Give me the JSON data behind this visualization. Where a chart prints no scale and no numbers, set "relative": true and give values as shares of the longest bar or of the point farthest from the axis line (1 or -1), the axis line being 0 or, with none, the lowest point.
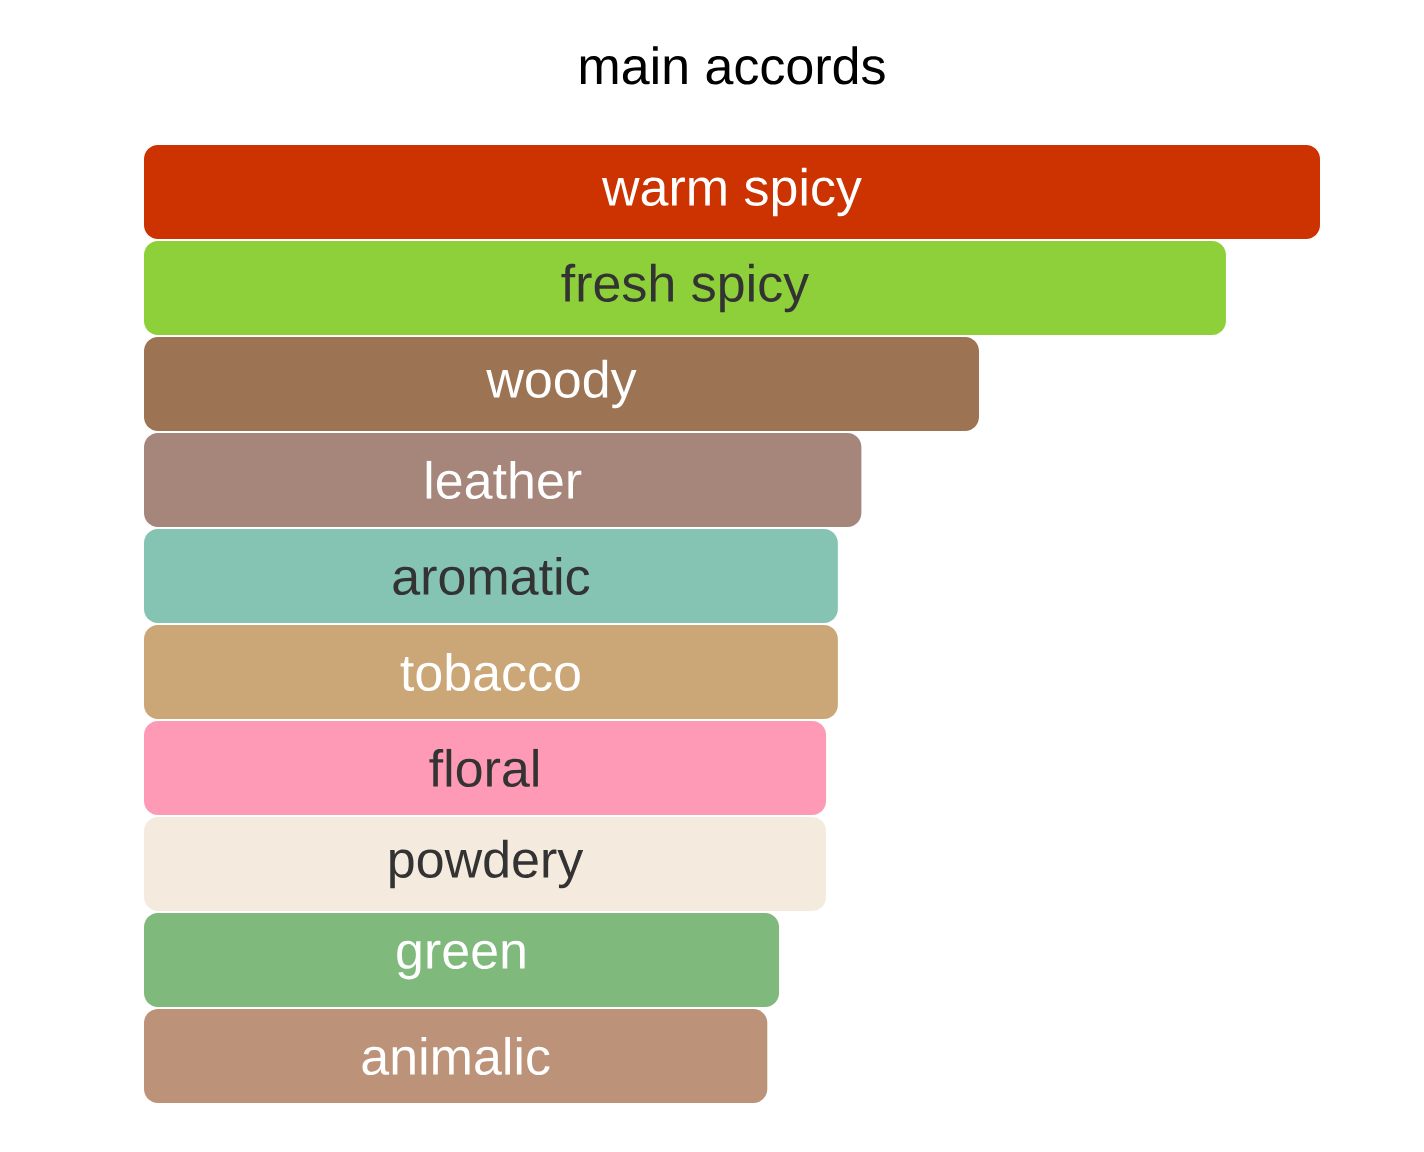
{
  "chart_data": {
    "type": "bar",
    "orientation": "horizontal",
    "relative": true,
    "title": "main accords",
    "categories": [
      "warm spicy",
      "fresh spicy",
      "woody",
      "leather",
      "aromatic",
      "tobacco",
      "floral",
      "powdery",
      "green",
      "animalic"
    ],
    "values": [
      1,
      0.92,
      0.71,
      0.61,
      0.59,
      0.59,
      0.58,
      0.58,
      0.54,
      0.53
    ],
    "colors": [
      "#cc3300",
      "#8dd03a",
      "#9c7353",
      "#a6857a",
      "#85c4b2",
      "#cba676",
      "#ff9ab6",
      "#f5eade",
      "#7fb97c",
      "#bc9279"
    ]
  }
}
